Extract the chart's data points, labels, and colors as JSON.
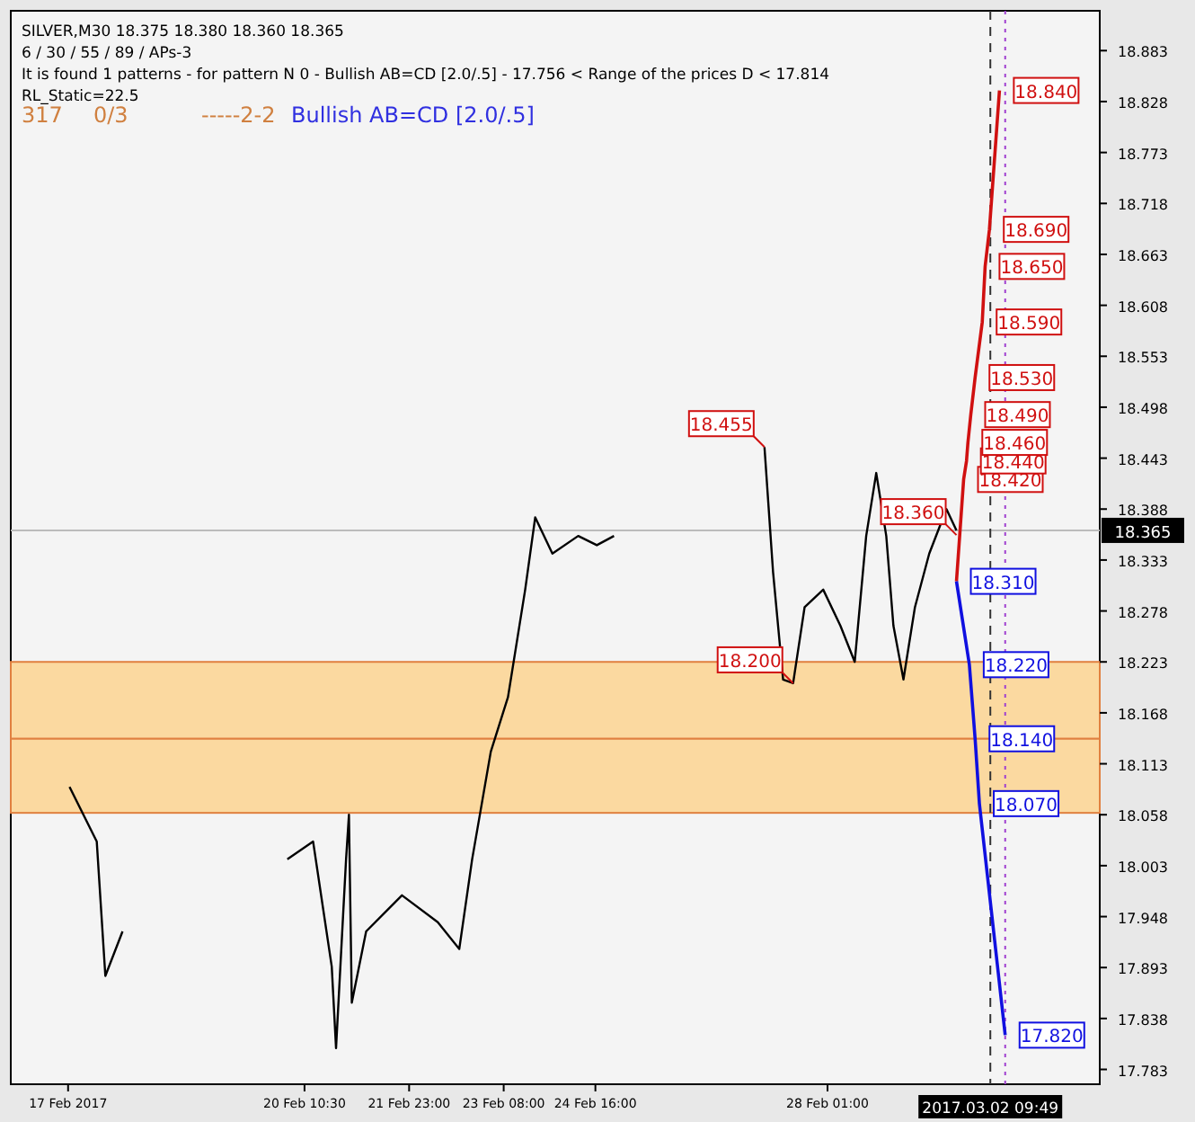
{
  "chart_data": {
    "type": "line",
    "series": [
      {
        "color": "#000000",
        "x": [
          "2017-02-17T00:30",
          "2017-02-17T10:00",
          "2017-02-17T13:00",
          "2017-02-17T19:00",
          "2017-02-18T12:00",
          "2017-02-20T04:30",
          "2017-02-20T13:30",
          "2017-02-20T20:00",
          "2017-02-20T21:30",
          "2017-02-21T01:00",
          "2017-02-21T02:00",
          "2017-02-21T03:00",
          "2017-02-21T08:00",
          "2017-02-21T20:30",
          "2017-02-22T09:00",
          "2017-02-22T16:30",
          "2017-02-22T21:00",
          "2017-02-23T03:30",
          "2017-02-23T09:30",
          "2017-02-23T15:30",
          "2017-02-23T19:00",
          "2017-02-24T01:00",
          "2017-02-24T10:00",
          "2017-02-24T16:30",
          "2017-02-24T22:30",
          "2017-02-25T12:00",
          "2017-02-27T03:00",
          "2017-02-27T06:00",
          "2017-02-27T09:30",
          "2017-02-27T13:00",
          "2017-02-27T17:00",
          "2017-02-27T23:30",
          "2017-02-28T05:30",
          "2017-02-28T10:30",
          "2017-02-28T14:30",
          "2017-02-28T18:00",
          "2017-02-28T21:30",
          "2017-03-01T00:00",
          "2017-03-01T03:30",
          "2017-03-01T07:30",
          "2017-03-01T12:30",
          "2017-03-01T18:30",
          "2017-03-01T22:00"
        ],
        "values": [
          18.088,
          18.029,
          17.884,
          17.932,
          null,
          18.01,
          18.029,
          17.894,
          17.806,
          18.01,
          18.058,
          17.855,
          17.932,
          17.971,
          17.942,
          17.913,
          18.01,
          18.126,
          18.185,
          18.301,
          18.379,
          18.34,
          18.359,
          18.349,
          18.359,
          null,
          18.455,
          18.32,
          18.204,
          18.2,
          18.282,
          18.301,
          18.262,
          18.223,
          18.359,
          18.427,
          18.359,
          18.262,
          18.204,
          18.282,
          18.34,
          18.388,
          18.365
        ]
      },
      {
        "color": "#d01010",
        "x": [
          "2017-03-01T22:00",
          "2017-03-02T00:30",
          "2017-03-02T01:30",
          "2017-03-02T02:00",
          "2017-03-02T03:00",
          "2017-03-02T04:30",
          "2017-03-02T07:00",
          "2017-03-02T08:00",
          "2017-03-02T09:30",
          "2017-03-02T13:00"
        ],
        "values": [
          18.31,
          18.42,
          18.44,
          18.46,
          18.49,
          18.53,
          18.59,
          18.65,
          18.69,
          18.84
        ],
        "value_labels": [
          null,
          "18.420",
          "18.440",
          "18.460",
          "18.490",
          "18.530",
          "18.590",
          "18.650",
          "18.690",
          "18.840"
        ]
      },
      {
        "color": "#1010e0",
        "x": [
          "2017-03-01T22:00",
          "2017-03-02T02:30",
          "2017-03-02T04:30",
          "2017-03-02T06:00",
          "2017-03-02T15:00"
        ],
        "values": [
          18.31,
          18.22,
          18.14,
          18.07,
          17.82
        ],
        "value_labels": [
          "18.310",
          "18.220",
          "18.140",
          "18.070",
          "17.820"
        ]
      }
    ],
    "annotations": [
      "SILVER,M30  18.375 18.380 18.360 18.365",
      "6 / 30 / 55 / 89 / APs-3",
      "It is found 1 patterns  -  for pattern N 0 - Bullish AB=CD [2.0/.5] - 17.756 < Range of the prices D < 17.814",
      "RL_Static=22.5",
      "317",
      "0/3",
      "-----2-2",
      "Bullish AB=CD [2.0/.5]",
      {
        "text": "18.455",
        "x": "2017-02-27T03:00",
        "y": 18.455
      },
      {
        "text": "18.200",
        "x": "2017-02-27T13:00",
        "y": 18.2
      },
      {
        "text": "18.360",
        "x": "2017-03-01T22:00",
        "y": 18.36
      }
    ],
    "ref_lines": [
      {
        "axis": "y",
        "value": 18.365,
        "label": "18.365",
        "color": "#bbbbbb"
      },
      {
        "axis": "x",
        "value": "2017-03-02T09:49",
        "label": "2017.03.02 09:49",
        "color": "#333333",
        "line_style": "dashed"
      },
      {
        "axis": "x",
        "value": "2017-03-02T15:00",
        "color": "#a040d0",
        "line_style": "dotted"
      }
    ],
    "bands": [
      {
        "axis": "y",
        "from": 18.14,
        "to": 18.223,
        "color": "#fbd9a0"
      },
      {
        "axis": "y",
        "from": 18.06,
        "to": 18.14,
        "color": "#fbd9a0"
      }
    ],
    "xlim": [
      "2017-02-16T04:00",
      "2017-03-04T00:00"
    ],
    "xticks": [
      {
        "value": "2017-02-17",
        "label": "17 Feb 2017"
      },
      {
        "value": "2017-02-20T10:30",
        "label": "20 Feb 10:30"
      },
      {
        "value": "2017-02-21T23:00",
        "label": "21 Feb 23:00"
      },
      {
        "value": "2017-02-23T08:00",
        "label": "23 Feb 08:00"
      },
      {
        "value": "2017-02-24T16:00",
        "label": "24 Feb 16:00"
      },
      {
        "value": "2017-02-28T01:00",
        "label": "28 Feb 01:00"
      }
    ],
    "ylim": [
      17.767,
      18.926
    ],
    "yticks": [
      17.783,
      17.838,
      17.893,
      17.948,
      18.003,
      18.058,
      18.113,
      18.168,
      18.223,
      18.278,
      18.333,
      18.388,
      18.443,
      18.498,
      18.553,
      18.608,
      18.663,
      18.718,
      18.773,
      18.828,
      18.883
    ]
  }
}
